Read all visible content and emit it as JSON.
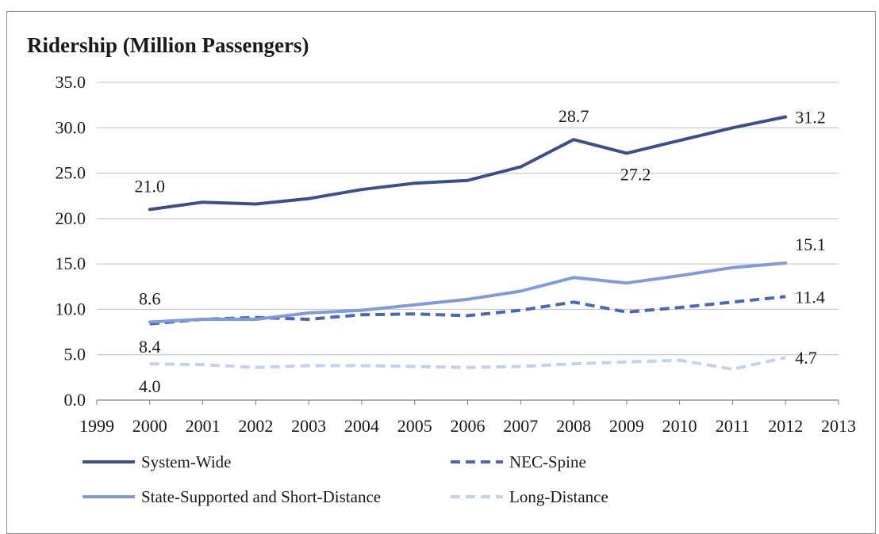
{
  "chart_data": {
    "type": "line",
    "title": "Ridership (Million Passengers)",
    "xlim": [
      1999,
      2013
    ],
    "ylim": [
      0,
      35
    ],
    "x_ticks": [
      1999,
      2000,
      2001,
      2002,
      2003,
      2004,
      2005,
      2006,
      2007,
      2008,
      2009,
      2010,
      2011,
      2012,
      2013
    ],
    "y_ticks": [
      "0.0",
      "5.0",
      "10.0",
      "15.0",
      "20.0",
      "25.0",
      "30.0",
      "35.0"
    ],
    "grid": "horizontal",
    "legend_position": "bottom",
    "x": [
      2000,
      2001,
      2002,
      2003,
      2004,
      2005,
      2006,
      2007,
      2008,
      2009,
      2010,
      2011,
      2012
    ],
    "series": [
      {
        "name": "System-Wide",
        "color": "#3b4f8f",
        "style": "solid",
        "values": [
          21.0,
          21.8,
          21.6,
          22.2,
          23.2,
          23.9,
          24.2,
          25.7,
          28.7,
          27.2,
          28.6,
          30.0,
          31.2
        ]
      },
      {
        "name": "NEC-Spine",
        "color": "#4a66b8",
        "style": "dashed",
        "values": [
          8.4,
          8.9,
          9.1,
          8.9,
          9.4,
          9.5,
          9.3,
          9.9,
          10.8,
          9.7,
          10.2,
          10.8,
          11.4
        ]
      },
      {
        "name": "State-Supported and Short-Distance",
        "color": "#7f9be0",
        "style": "solid",
        "values": [
          8.6,
          8.9,
          8.9,
          9.6,
          9.9,
          10.5,
          11.1,
          12.0,
          13.5,
          12.9,
          13.7,
          14.6,
          15.1
        ]
      },
      {
        "name": "Long-Distance",
        "color": "#c4d0f0",
        "style": "dashed",
        "values": [
          4.0,
          3.9,
          3.6,
          3.8,
          3.8,
          3.7,
          3.6,
          3.7,
          4.0,
          4.2,
          4.4,
          3.4,
          4.7
        ]
      }
    ],
    "annotations": [
      {
        "text": "21.0",
        "x": 2000,
        "y": 21.0,
        "pos": "above"
      },
      {
        "text": "28.7",
        "x": 2008,
        "y": 28.7,
        "pos": "above"
      },
      {
        "text": "27.2",
        "x": 2009,
        "y": 27.2,
        "pos": "below-right"
      },
      {
        "text": "31.2",
        "x": 2012,
        "y": 31.2,
        "pos": "right"
      },
      {
        "text": "15.1",
        "x": 2012,
        "y": 15.1,
        "pos": "above-right"
      },
      {
        "text": "8.6",
        "x": 2000,
        "y": 8.6,
        "pos": "above"
      },
      {
        "text": "8.4",
        "x": 2000,
        "y": 8.4,
        "pos": "below"
      },
      {
        "text": "11.4",
        "x": 2012,
        "y": 11.4,
        "pos": "right"
      },
      {
        "text": "4.0",
        "x": 2000,
        "y": 4.0,
        "pos": "below"
      },
      {
        "text": "4.7",
        "x": 2012,
        "y": 4.7,
        "pos": "right"
      }
    ]
  }
}
